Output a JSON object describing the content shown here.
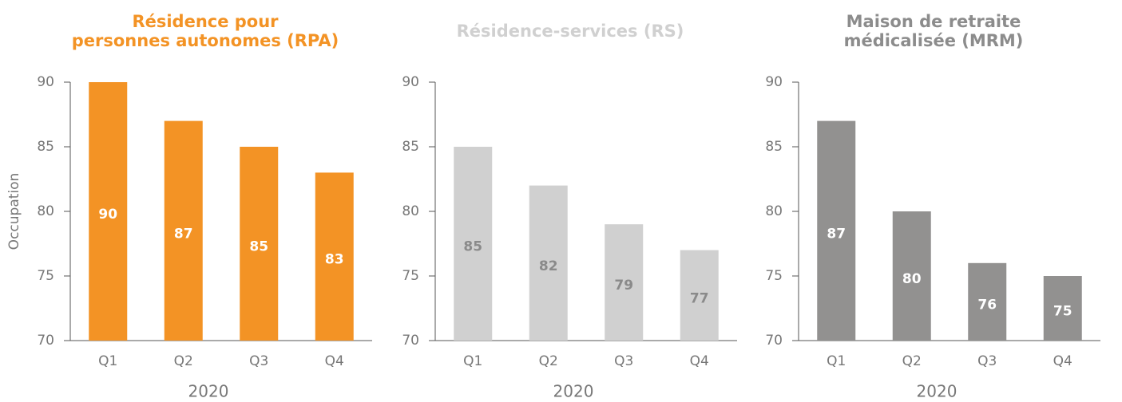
{
  "chart_data": [
    {
      "type": "bar",
      "title": [
        "Résidence pour",
        "personnes autonomes (RPA)"
      ],
      "title_color": "#f39325",
      "y_label": "Occupation",
      "x_label": "2020",
      "categories": [
        "Q1",
        "Q2",
        "Q3",
        "Q4"
      ],
      "values": [
        90,
        87,
        85,
        83
      ],
      "color": "#f39325",
      "label_color": "#ffffff",
      "ylim": [
        70,
        90
      ],
      "yticks": [
        70,
        75,
        80,
        85,
        90
      ]
    },
    {
      "type": "bar",
      "title": [
        "Résidence-services (RS)"
      ],
      "title_color": "#d0d0d0",
      "x_label": "2020",
      "categories": [
        "Q1",
        "Q2",
        "Q3",
        "Q4"
      ],
      "values": [
        85,
        82,
        79,
        77
      ],
      "color": "#d0d0d0",
      "label_color": "#8a8a8a",
      "ylim": [
        70,
        90
      ],
      "yticks": [
        70,
        75,
        80,
        85,
        90
      ]
    },
    {
      "type": "bar",
      "title": [
        "Maison de retraite",
        "médicalisée (MRM)"
      ],
      "title_color": "#8c8c8c",
      "x_label": "2020",
      "categories": [
        "Q1",
        "Q2",
        "Q3",
        "Q4"
      ],
      "values": [
        87,
        80,
        76,
        75
      ],
      "color": "#929190",
      "label_color": "#ffffff",
      "ylim": [
        70,
        90
      ],
      "yticks": [
        70,
        75,
        80,
        85,
        90
      ]
    }
  ]
}
